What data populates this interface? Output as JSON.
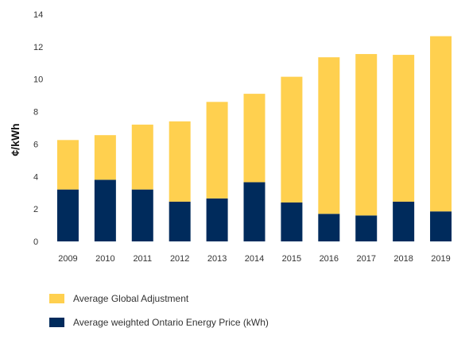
{
  "chart_data": {
    "type": "bar",
    "stacked": true,
    "title": "",
    "xlabel": "",
    "ylabel": "¢/kWh",
    "ylim": [
      0,
      14
    ],
    "yticks": [
      0,
      2,
      4,
      6,
      8,
      10,
      12,
      14
    ],
    "categories": [
      "2009",
      "2010",
      "2011",
      "2012",
      "2013",
      "2014",
      "2015",
      "2016",
      "2017",
      "2018",
      "2019"
    ],
    "series": [
      {
        "name": "Average weighted Ontario Energy Price (kWh)",
        "color": "#002b5c",
        "values": [
          3.2,
          3.8,
          3.2,
          2.45,
          2.65,
          3.65,
          2.4,
          1.7,
          1.6,
          2.45,
          1.85
        ]
      },
      {
        "name": "Average Global Adjustment",
        "color": "#ffd04f",
        "values": [
          3.05,
          2.75,
          4.0,
          4.95,
          5.95,
          5.45,
          7.75,
          9.65,
          9.95,
          9.05,
          10.8
        ]
      }
    ],
    "legend_position": "bottom-left",
    "legend_order": [
      "Average Global Adjustment",
      "Average weighted Ontario Energy Price (kWh)"
    ],
    "grid": false
  }
}
